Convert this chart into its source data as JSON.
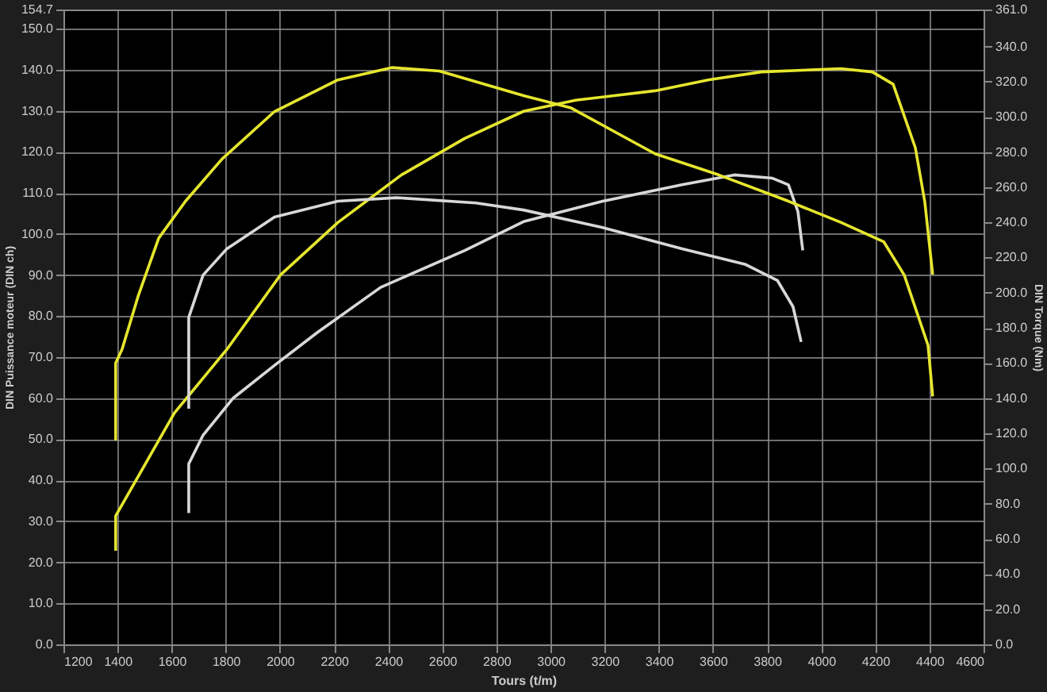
{
  "chart_data": {
    "type": "line",
    "xlabel": "Tours (t/m)",
    "ylabel": "DIN Puissance moteur (DIN ch)",
    "y2label": "DIN Torque (Nm)",
    "xlim": [
      1200,
      4600
    ],
    "xticks": [
      1200,
      1400,
      1600,
      1800,
      2000,
      2200,
      2400,
      2600,
      2800,
      3000,
      3200,
      3400,
      3600,
      3800,
      4000,
      4200,
      4400,
      4600
    ],
    "ylim": [
      0,
      154.7
    ],
    "yticks": [
      {
        "value": 0,
        "label": "0.0"
      },
      {
        "value": 10,
        "label": "10.0"
      },
      {
        "value": 20,
        "label": "20.0"
      },
      {
        "value": 30,
        "label": "30.0"
      },
      {
        "value": 40,
        "label": "40.0"
      },
      {
        "value": 50,
        "label": "50.0"
      },
      {
        "value": 60,
        "label": "60.0"
      },
      {
        "value": 70,
        "label": "70.0"
      },
      {
        "value": 80,
        "label": "80.0"
      },
      {
        "value": 90,
        "label": "90.0"
      },
      {
        "value": 100,
        "label": "100.0"
      },
      {
        "value": 110,
        "label": "110.0"
      },
      {
        "value": 120,
        "label": "120.0"
      },
      {
        "value": 130,
        "label": "130.0"
      },
      {
        "value": 140,
        "label": "140.0"
      },
      {
        "value": 150,
        "label": "150.0"
      },
      {
        "value": 154.7,
        "label": "154.7"
      }
    ],
    "y2lim": [
      0,
      361
    ],
    "y2ticks": [
      {
        "value": 0,
        "label": "0.0"
      },
      {
        "value": 20,
        "label": "20.0"
      },
      {
        "value": 40,
        "label": "40.0"
      },
      {
        "value": 60,
        "label": "60.0"
      },
      {
        "value": 80,
        "label": "80.0"
      },
      {
        "value": 100,
        "label": "100.0"
      },
      {
        "value": 120,
        "label": "120.0"
      },
      {
        "value": 140,
        "label": "140.0"
      },
      {
        "value": 160,
        "label": "160.0"
      },
      {
        "value": 180,
        "label": "180.0"
      },
      {
        "value": 200,
        "label": "200.0"
      },
      {
        "value": 220,
        "label": "220.0"
      },
      {
        "value": 240,
        "label": "240.0"
      },
      {
        "value": 260,
        "label": "260.0"
      },
      {
        "value": 280,
        "label": "280.0"
      },
      {
        "value": 300,
        "label": "300.0"
      },
      {
        "value": 320,
        "label": "320.0"
      },
      {
        "value": 340,
        "label": "340.0"
      },
      {
        "value": 361,
        "label": "361.0"
      }
    ],
    "grid": true,
    "legend": false,
    "marker": "none",
    "line_style": "solid",
    "series": [
      {
        "color": "#e6e62e",
        "axis": "y2",
        "x": [
          1393,
          1393,
          1417,
          1476,
          1552,
          1651,
          1786,
          1980,
          2214,
          2413,
          2589,
          2900,
          3076,
          3386,
          3621,
          3879,
          4072,
          4231,
          4307,
          4395,
          4412
        ],
        "values": [
          116,
          160,
          168,
          198,
          231,
          252,
          276,
          303,
          321,
          328,
          326,
          312,
          305,
          279,
          267,
          252,
          240,
          229,
          210,
          170,
          141
        ]
      },
      {
        "color": "#e6e62e",
        "x": [
          1393,
          1393,
          1610,
          1804,
          2003,
          2214,
          2449,
          2683,
          2900,
          3093,
          3386,
          3586,
          3779,
          4072,
          4189,
          4266,
          4348,
          4383,
          4412
        ],
        "values": [
          22.8,
          31.3,
          56.4,
          71.9,
          90.1,
          102.8,
          114.4,
          123.3,
          129.9,
          132.6,
          134.9,
          137.6,
          139.5,
          140.3,
          139.5,
          136.5,
          121.0,
          107.8,
          90.1
        ]
      },
      {
        "color": "#d8d8d8",
        "axis": "y2",
        "x": [
          1663,
          1663,
          1663,
          1716,
          1804,
          1980,
          2214,
          2431,
          2724,
          2900,
          3193,
          3486,
          3721,
          3838,
          3896,
          3926
        ],
        "values": [
          134,
          177,
          186,
          210,
          225,
          243,
          252,
          254,
          251,
          247,
          237,
          225,
          216,
          207,
          192,
          172
        ]
      },
      {
        "color": "#d8d8d8",
        "x": [
          1663,
          1663,
          1716,
          1827,
          1980,
          2138,
          2372,
          2683,
          2900,
          3193,
          3486,
          3679,
          3820,
          3879,
          3914,
          3932
        ],
        "values": [
          32,
          44,
          51,
          60,
          68,
          76,
          87,
          96,
          103,
          108,
          112,
          114.4,
          113.6,
          112,
          105.5,
          96
        ]
      }
    ]
  }
}
